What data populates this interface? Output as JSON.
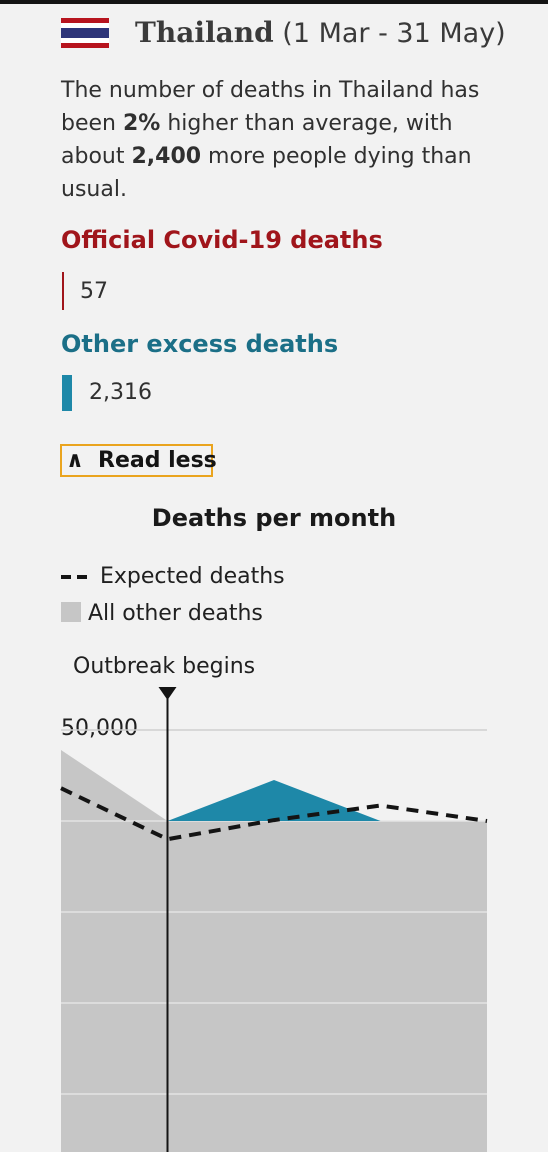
{
  "header": {
    "country": "Thailand",
    "date_range": "(1 Mar - 31 May)"
  },
  "description": {
    "part1": "The number of deaths in Thailand has been ",
    "percent": "2%",
    "part2": " higher than average, with about ",
    "excess": "2,400",
    "part3": " more people dying than usual."
  },
  "covid": {
    "label": "Official Covid-19 deaths",
    "value": "57",
    "color": "#a0151b"
  },
  "excess": {
    "label": "Other excess deaths",
    "value": "2,316",
    "color": "#1e88a8"
  },
  "toggle": {
    "label": "Read less",
    "icon": "caret-up-icon"
  },
  "chart_data": {
    "type": "area",
    "title": "Deaths per month",
    "legend": [
      "Expected deaths",
      "All other deaths"
    ],
    "annotation": "Outbreak begins",
    "outbreak_index": 1,
    "y_ticks": [
      50000
    ],
    "y_tick_labels": [
      "50,000"
    ],
    "gridlines": [
      50000,
      40000,
      30000,
      20000,
      10000
    ],
    "ylim": [
      0,
      56000
    ],
    "series": [
      {
        "name": "All other deaths",
        "values": [
          47800,
          40000,
          40000,
          40000,
          40000
        ],
        "color": "#c6c6c6"
      },
      {
        "name": "Expected deaths",
        "values": [
          43600,
          38000,
          40100,
          41700,
          40000
        ],
        "style": "dashed",
        "color": "#141414"
      }
    ],
    "excess_band": {
      "indices": [
        1,
        2,
        3
      ],
      "values": [
        40000,
        44500,
        40000
      ],
      "color": "#1e88a8"
    }
  }
}
